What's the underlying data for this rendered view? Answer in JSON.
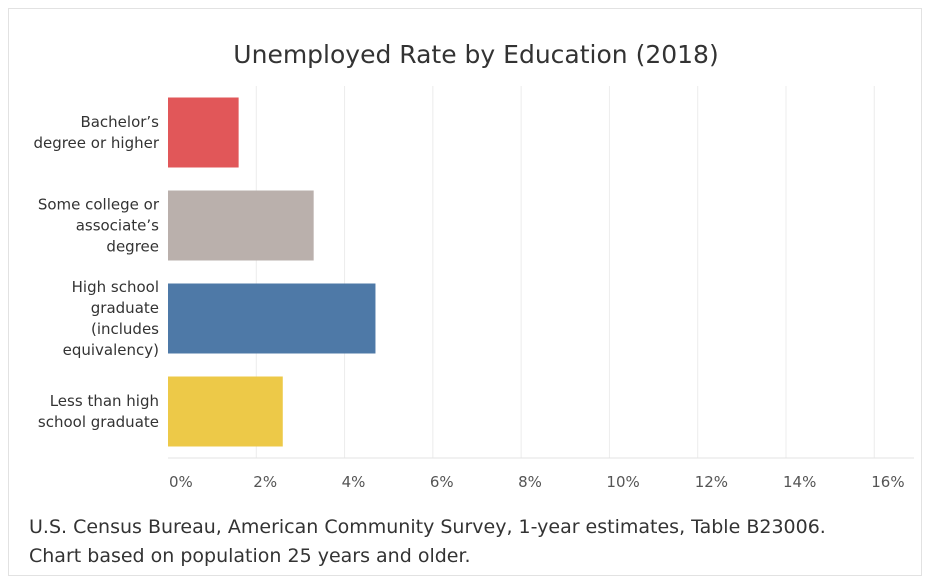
{
  "chart_data": {
    "type": "bar",
    "orientation": "horizontal",
    "title": "Unemployed Rate by Education (2018)",
    "categories": [
      [
        "Bachelor’s",
        "degree or higher"
      ],
      [
        "Some college or",
        "associate’s",
        "degree"
      ],
      [
        "High school",
        "graduate",
        "(includes",
        "equivalency)"
      ],
      [
        "Less than high",
        "school graduate"
      ]
    ],
    "values": [
      1.6,
      3.3,
      4.7,
      2.6
    ],
    "colors": [
      "#e15759",
      "#bab0ac",
      "#4e79a7",
      "#edc948"
    ],
    "xlim": [
      0,
      16.9
    ],
    "x_ticks": [
      0,
      2,
      4,
      6,
      8,
      10,
      12,
      14,
      16
    ],
    "x_tick_labels": [
      "0%",
      "2%",
      "4%",
      "6%",
      "8%",
      "10%",
      "12%",
      "14%",
      "16%"
    ],
    "grid": true,
    "xlabel": "",
    "ylabel": ""
  },
  "footnote": {
    "line1": "U.S. Census Bureau, American Community Survey, 1-year estimates, Table B23006.",
    "line2": "Chart based on population 25 years and older."
  }
}
